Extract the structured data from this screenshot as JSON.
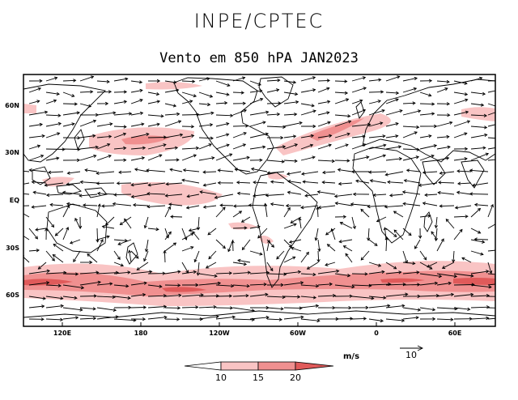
{
  "header": {
    "org": "INPE/CPTEC",
    "title": "Vento em 850 hPA JAN2023"
  },
  "map": {
    "lon_labels": [
      "120E",
      "180",
      "120W",
      "60W",
      "0",
      "60E"
    ],
    "lat_labels": [
      "60N",
      "30N",
      "EQ",
      "30S",
      "60S"
    ],
    "wind_colors": {
      "over10": "#f9c4c4",
      "over15": "#f09090",
      "over20": "#e05a5a"
    }
  },
  "colorbar": {
    "ticks": [
      "10",
      "15",
      "20"
    ],
    "unit": "m/s"
  },
  "vector_key": {
    "value": "10"
  }
}
